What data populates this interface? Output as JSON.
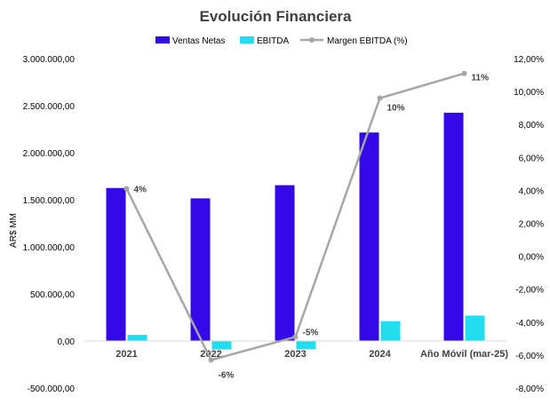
{
  "chart_data": {
    "type": "bar",
    "title": "Evolución Financiera",
    "categories": [
      "2021",
      "2022",
      "2023",
      "2024",
      "Año Móvil (mar-25)"
    ],
    "series": [
      {
        "name": "Ventas Netas",
        "type": "bar",
        "axis": "left",
        "color": "#3309E8",
        "values": [
          1625000,
          1515000,
          1655000,
          2215000,
          2425000
        ]
      },
      {
        "name": "EBITDA",
        "type": "bar",
        "axis": "left",
        "color": "#22DDF0",
        "values": [
          65000,
          -90000,
          -85000,
          210000,
          270000
        ]
      },
      {
        "name": "Margen EBITDA (%)",
        "type": "line",
        "axis": "right",
        "color": "#A6A6A6",
        "values": [
          4.1,
          -6.3,
          -4.9,
          9.6,
          11.1
        ],
        "labels": [
          "4%",
          "-6%",
          "-5%",
          "10%",
          "11%"
        ]
      }
    ],
    "ylabel": "AR$ MM",
    "ylim": [
      -500000,
      3000000
    ],
    "yticks": [
      -500000,
      0,
      500000,
      1000000,
      1500000,
      2000000,
      2500000,
      3000000
    ],
    "ytick_labels": [
      "-500.000,00",
      "0,00",
      "500.000,00",
      "1.000.000,00",
      "1.500.000,00",
      "2.000.000,00",
      "2.500.000,00",
      "3.000.000,00"
    ],
    "y2lim": [
      -8,
      12
    ],
    "y2ticks": [
      -8,
      -6,
      -4,
      -2,
      0,
      2,
      4,
      6,
      8,
      10,
      12
    ],
    "y2tick_labels": [
      "-8,00%",
      "-6,00%",
      "-4,00%",
      "-2,00%",
      "0,00%",
      "2,00%",
      "4,00%",
      "6,00%",
      "8,00%",
      "10,00%",
      "12,00%"
    ],
    "legend": "top",
    "grid": false
  }
}
